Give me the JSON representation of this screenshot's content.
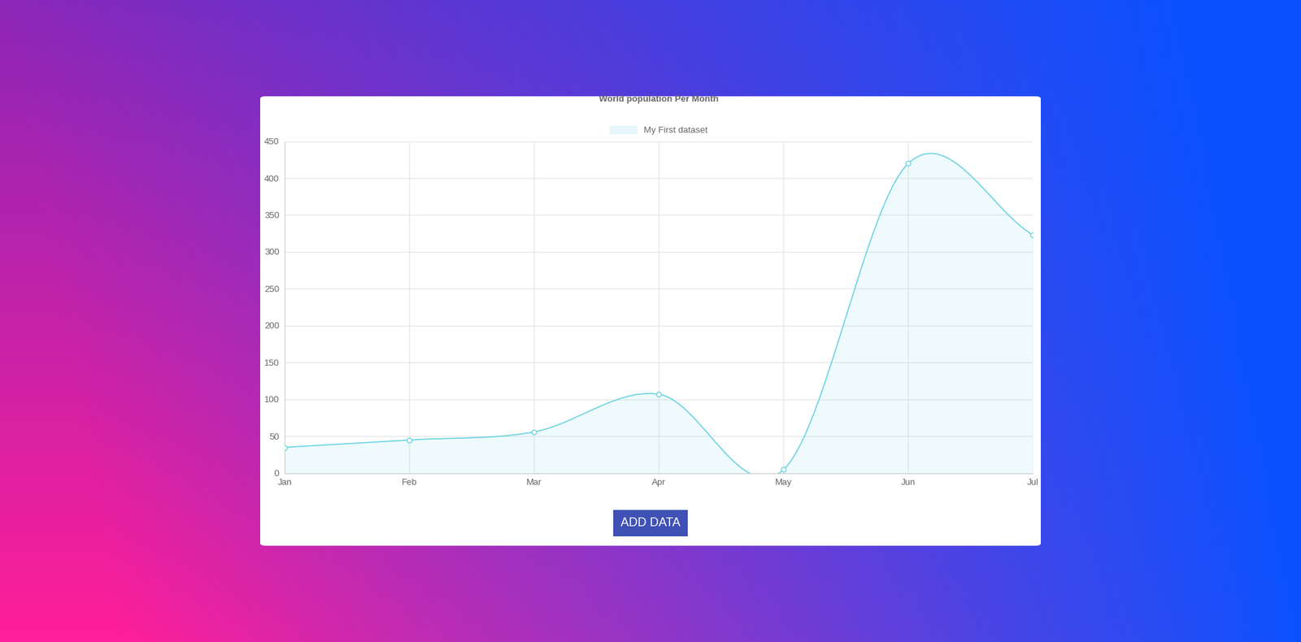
{
  "chart_data": {
    "type": "line",
    "title": "World population Per Month",
    "categories": [
      "Jan",
      "Feb",
      "Mar",
      "Apr",
      "May",
      "Jun",
      "Jul"
    ],
    "series": [
      {
        "name": "My First dataset",
        "color": "#6ad3e3",
        "marker": "circle",
        "values": [
          35,
          45,
          56,
          107,
          5,
          420,
          323
        ]
      }
    ],
    "ylim": [
      0,
      450
    ],
    "yticks": [
      0,
      50,
      100,
      150,
      200,
      250,
      300,
      350,
      400,
      450
    ],
    "grid": true,
    "legend": "top",
    "annotations": [
      "ADD DATA"
    ]
  }
}
